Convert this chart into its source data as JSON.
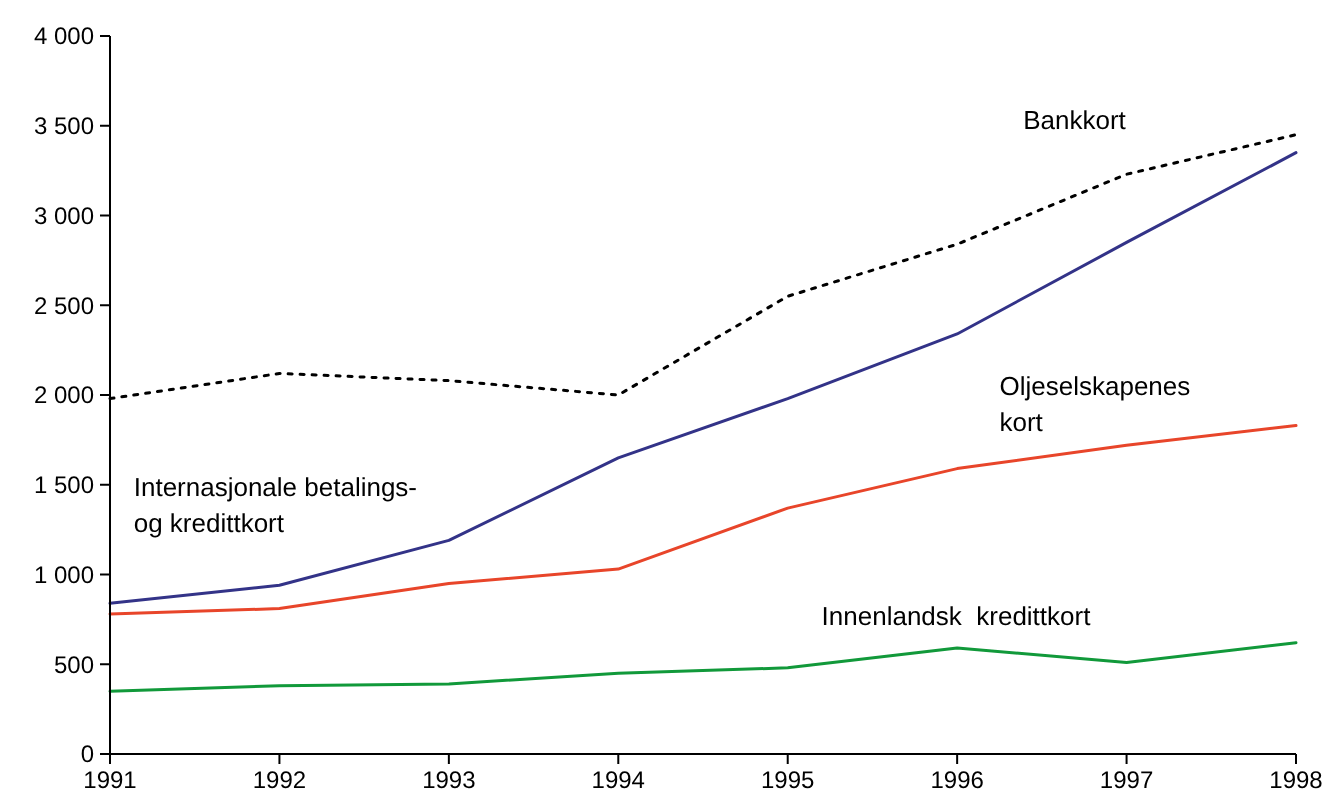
{
  "chart_data": {
    "type": "line",
    "x": [
      1991,
      1992,
      1993,
      1994,
      1995,
      1996,
      1997,
      1998
    ],
    "xlim": [
      1991,
      1998
    ],
    "xticks": [
      1991,
      1992,
      1993,
      1994,
      1995,
      1996,
      1997,
      1998
    ],
    "ylim": [
      0,
      4000
    ],
    "yticks": [
      0,
      {
        "value": 500,
        "label": "500"
      },
      {
        "value": 1000,
        "label": "1 000"
      },
      {
        "value": 1500,
        "label": "1 500"
      },
      {
        "value": 2000,
        "label": "2 000"
      },
      {
        "value": 2500,
        "label": "2 500"
      },
      {
        "value": 3000,
        "label": "3 000"
      },
      {
        "value": 3500,
        "label": "3 500"
      },
      {
        "value": 4000,
        "label": "4 000"
      }
    ],
    "grid": false,
    "marker": "none",
    "series": [
      {
        "name": "Bankkort",
        "color": "#000000",
        "line_style": "dotted",
        "values": [
          1980,
          2120,
          2080,
          2000,
          2550,
          2840,
          3230,
          3450
        ]
      },
      {
        "name": "Internasjonale betalings-\nog kredittkort",
        "color": "#333388",
        "line_style": "solid",
        "values": [
          840,
          940,
          1190,
          1650,
          1980,
          2340,
          2850,
          3350
        ]
      },
      {
        "name": "Oljeselskapenes\nkort",
        "color": "#e8452a",
        "line_style": "solid",
        "values": [
          780,
          810,
          950,
          1030,
          1370,
          1590,
          1720,
          1830
        ]
      },
      {
        "name": "Innenlandsk  kredittkort",
        "color": "#11993a",
        "line_style": "solid",
        "values": [
          350,
          380,
          390,
          450,
          480,
          590,
          510,
          620
        ]
      }
    ]
  }
}
